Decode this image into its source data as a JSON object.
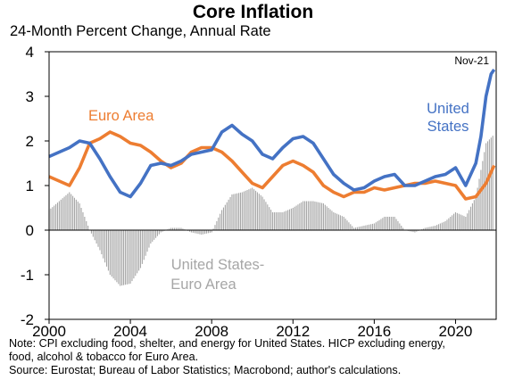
{
  "title": "Core Inflation",
  "subtitle": "24-Month Percent Change, Annual Rate",
  "notes": [
    "Note: CPI excluding food, shelter, and energy for United States. HICP excluding energy,",
    "food, alcohol & tobacco for Euro Area.",
    "Source: Eurostat; Bureau of Labor Statistics; Macrobond; author's calculations."
  ],
  "colors": {
    "us": "#4472C4",
    "euro": "#ED7D31",
    "diff": "#A6A6A6"
  },
  "chart_data": {
    "type": "line",
    "title": "Core Inflation",
    "subtitle": "24-Month Percent Change, Annual Rate",
    "xlim": [
      2000,
      2022
    ],
    "ylim": [
      -2,
      4
    ],
    "x_ticks": [
      2000,
      2004,
      2008,
      2012,
      2016,
      2020
    ],
    "x_tick_labels": [
      "2000",
      "2004",
      "2008",
      "2012",
      "2016",
      "2020"
    ],
    "y_ticks": [
      -2,
      -1,
      0,
      1,
      2,
      3,
      4
    ],
    "y_tick_labels": [
      "-2",
      "-1",
      "0",
      "1",
      "2",
      "3",
      "4"
    ],
    "annotations": [
      {
        "text": "Nov-21"
      },
      {
        "text": "Euro Area",
        "series": "Euro Area"
      },
      {
        "text": "United States",
        "series": "United States"
      },
      {
        "text": "United States-Euro Area",
        "series": "United States-Euro Area"
      }
    ],
    "series": [
      {
        "name": "United States",
        "kind": "line",
        "x": [
          2000.0,
          2000.5,
          2001.0,
          2001.5,
          2002.0,
          2002.5,
          2003.0,
          2003.5,
          2004.0,
          2004.5,
          2005.0,
          2005.5,
          2006.0,
          2006.5,
          2007.0,
          2007.5,
          2008.0,
          2008.5,
          2009.0,
          2009.5,
          2010.0,
          2010.5,
          2011.0,
          2011.5,
          2012.0,
          2012.5,
          2013.0,
          2013.5,
          2014.0,
          2014.5,
          2015.0,
          2015.5,
          2016.0,
          2016.5,
          2017.0,
          2017.5,
          2018.0,
          2018.5,
          2019.0,
          2019.5,
          2020.0,
          2020.5,
          2021.0,
          2021.25,
          2021.5,
          2021.75,
          2021.9
        ],
        "y": [
          1.65,
          1.75,
          1.85,
          2.0,
          1.95,
          1.6,
          1.2,
          0.85,
          0.75,
          1.05,
          1.45,
          1.5,
          1.45,
          1.55,
          1.7,
          1.75,
          1.8,
          2.2,
          2.35,
          2.15,
          2.0,
          1.7,
          1.6,
          1.85,
          2.05,
          2.1,
          1.95,
          1.6,
          1.25,
          1.05,
          0.9,
          0.95,
          1.1,
          1.2,
          1.25,
          1.0,
          1.0,
          1.1,
          1.2,
          1.25,
          1.4,
          1.0,
          1.5,
          2.1,
          3.0,
          3.5,
          3.6
        ]
      },
      {
        "name": "Euro Area",
        "kind": "line",
        "x": [
          2000.0,
          2000.5,
          2001.0,
          2001.5,
          2002.0,
          2002.5,
          2003.0,
          2003.5,
          2004.0,
          2004.5,
          2005.0,
          2005.5,
          2006.0,
          2006.5,
          2007.0,
          2007.5,
          2008.0,
          2008.5,
          2009.0,
          2009.5,
          2010.0,
          2010.5,
          2011.0,
          2011.5,
          2012.0,
          2012.5,
          2013.0,
          2013.5,
          2014.0,
          2014.5,
          2015.0,
          2015.5,
          2016.0,
          2016.5,
          2017.0,
          2017.5,
          2018.0,
          2018.5,
          2019.0,
          2019.5,
          2020.0,
          2020.5,
          2021.0,
          2021.5,
          2021.9
        ],
        "y": [
          1.2,
          1.1,
          1.0,
          1.4,
          1.95,
          2.05,
          2.2,
          2.1,
          1.95,
          1.9,
          1.75,
          1.55,
          1.4,
          1.5,
          1.75,
          1.85,
          1.85,
          1.75,
          1.55,
          1.3,
          1.05,
          0.95,
          1.2,
          1.45,
          1.55,
          1.45,
          1.3,
          1.0,
          0.85,
          0.75,
          0.85,
          0.85,
          0.95,
          0.9,
          0.95,
          1.0,
          1.05,
          1.05,
          1.1,
          1.05,
          1.0,
          0.7,
          0.75,
          1.05,
          1.45
        ]
      },
      {
        "name": "United States-Euro Area",
        "kind": "bar",
        "x": [
          2000.0,
          2000.5,
          2001.0,
          2001.5,
          2002.0,
          2002.5,
          2003.0,
          2003.5,
          2004.0,
          2004.5,
          2005.0,
          2005.5,
          2006.0,
          2006.5,
          2007.0,
          2007.5,
          2008.0,
          2008.5,
          2009.0,
          2009.5,
          2010.0,
          2010.5,
          2011.0,
          2011.5,
          2012.0,
          2012.5,
          2013.0,
          2013.5,
          2014.0,
          2014.5,
          2015.0,
          2015.5,
          2016.0,
          2016.5,
          2017.0,
          2017.5,
          2018.0,
          2018.5,
          2019.0,
          2019.5,
          2020.0,
          2020.5,
          2021.0,
          2021.5,
          2021.9
        ],
        "y": [
          0.45,
          0.65,
          0.85,
          0.6,
          0.0,
          -0.45,
          -1.0,
          -1.25,
          -1.2,
          -0.85,
          -0.3,
          -0.05,
          0.05,
          0.05,
          -0.05,
          -0.1,
          -0.05,
          0.45,
          0.8,
          0.85,
          0.95,
          0.75,
          0.4,
          0.4,
          0.5,
          0.65,
          0.65,
          0.6,
          0.4,
          0.3,
          0.05,
          0.1,
          0.15,
          0.3,
          0.3,
          0.0,
          -0.05,
          0.05,
          0.1,
          0.2,
          0.4,
          0.3,
          0.75,
          1.95,
          2.15
        ]
      }
    ]
  }
}
